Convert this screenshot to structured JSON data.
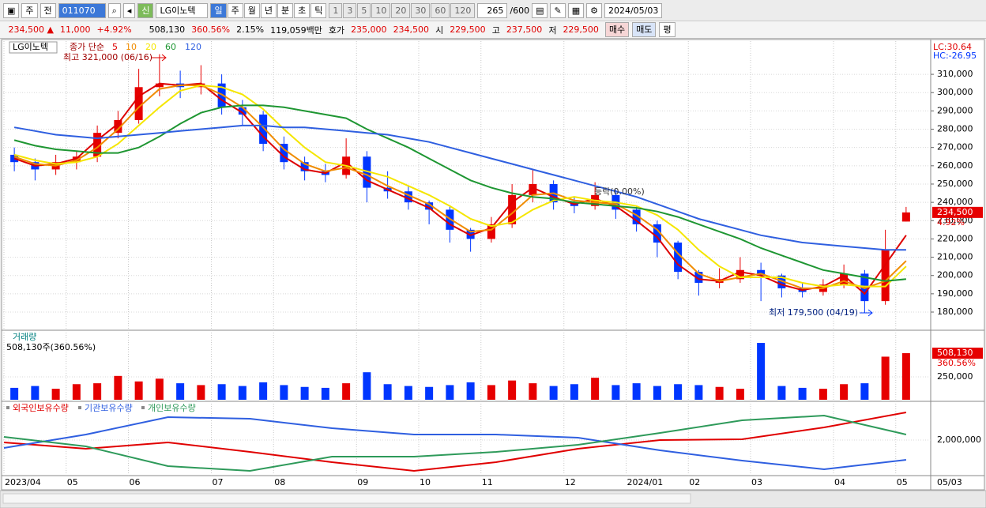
{
  "toolbar": {
    "market": "주",
    "scope": "전",
    "code": "011070",
    "name": "LG이노텍",
    "badge": "신",
    "periods": [
      "일",
      "주",
      "월",
      "년",
      "분",
      "초",
      "틱"
    ],
    "intervals": [
      "1",
      "3",
      "5",
      "10",
      "20",
      "30",
      "60",
      "120"
    ],
    "count": "265",
    "max": "/600",
    "date": "2024/05/03"
  },
  "infobar": {
    "price": "234,500 ▲",
    "change": "11,000",
    "rate": "+4.92%",
    "volume": "508,130",
    "volume_rate": "360.56%",
    "turnover": "2.15%",
    "amount": "119,059백만",
    "ask_label": "호가",
    "ask": "235,000",
    "bid": "234,500",
    "open_label": "시",
    "open": "229,500",
    "high_label": "고",
    "high": "237,500",
    "low_label": "저",
    "low": "229,500",
    "buy": "매수",
    "sell": "매도",
    "avg": "평"
  },
  "chart_data": [
    {
      "type": "candlestick",
      "label": "LG이노텍",
      "legend_title": "종가 단순",
      "up_color": "#e60000",
      "down_color": "#0036ff",
      "categories": [
        "2023/04",
        null,
        null,
        "05",
        null,
        null,
        "06",
        null,
        null,
        null,
        "07",
        null,
        null,
        "08",
        null,
        null,
        null,
        "09",
        null,
        null,
        "10",
        null,
        null,
        "11",
        null,
        null,
        null,
        "12",
        null,
        null,
        "2024/01",
        null,
        null,
        "02",
        null,
        null,
        "03",
        null,
        null,
        null,
        "04",
        null,
        null,
        "05"
      ],
      "ohlc": [
        [
          266000,
          270000,
          257000,
          262000
        ],
        [
          262000,
          264000,
          252000,
          258000
        ],
        [
          258000,
          266000,
          255000,
          262000
        ],
        [
          262000,
          268000,
          258000,
          265000
        ],
        [
          265000,
          282000,
          262000,
          278000
        ],
        [
          278000,
          290000,
          275000,
          285000
        ],
        [
          285000,
          313000,
          283000,
          303000
        ],
        [
          303000,
          321000,
          298000,
          305000
        ],
        [
          305000,
          312000,
          297000,
          303000
        ],
        [
          303000,
          315000,
          299000,
          305000
        ],
        [
          305000,
          310000,
          288000,
          292000
        ],
        [
          292000,
          296000,
          282000,
          288000
        ],
        [
          288000,
          290000,
          268000,
          272000
        ],
        [
          272000,
          276000,
          258000,
          262000
        ],
        [
          262000,
          265000,
          252000,
          257000
        ],
        [
          257000,
          261000,
          251000,
          255000
        ],
        [
          255000,
          275000,
          253000,
          265000
        ],
        [
          265000,
          268000,
          240000,
          248000
        ],
        [
          248000,
          257000,
          242000,
          246000
        ],
        [
          246000,
          249000,
          236000,
          240000
        ],
        [
          240000,
          241000,
          228000,
          236000
        ],
        [
          236000,
          238000,
          218000,
          225000
        ],
        [
          225000,
          226000,
          213000,
          220000
        ],
        [
          220000,
          232000,
          218000,
          228000
        ],
        [
          228000,
          250000,
          226000,
          244000
        ],
        [
          244000,
          258000,
          240000,
          250000
        ],
        [
          250000,
          252000,
          236000,
          240000
        ],
        [
          240000,
          243000,
          234000,
          238000
        ],
        [
          238000,
          251000,
          236000,
          244000
        ],
        [
          244000,
          247000,
          231000,
          236000
        ],
        [
          236000,
          238000,
          224000,
          228000
        ],
        [
          228000,
          230000,
          210000,
          218000
        ],
        [
          218000,
          219000,
          198000,
          202000
        ],
        [
          202000,
          203000,
          189000,
          196000
        ],
        [
          196000,
          204000,
          193000,
          198000
        ],
        [
          198000,
          210000,
          196000,
          203000
        ],
        [
          203000,
          207000,
          186000,
          200000
        ],
        [
          200000,
          201000,
          188000,
          193000
        ],
        [
          193000,
          196000,
          188000,
          191000
        ],
        [
          191000,
          198000,
          189000,
          195000
        ],
        [
          195000,
          206000,
          193000,
          201000
        ],
        [
          201000,
          203000,
          179500,
          186000
        ],
        [
          186000,
          225000,
          184000,
          214000
        ],
        [
          229500,
          237500,
          229500,
          234500
        ]
      ],
      "series": [
        {
          "name": "5",
          "color": "#dd0000",
          "values": [
            264000,
            260000,
            261000,
            264000,
            274000,
            283000,
            298000,
            305000,
            304000,
            305000,
            296000,
            289000,
            276000,
            265000,
            258000,
            256000,
            262000,
            252000,
            247000,
            242000,
            237000,
            228000,
            222000,
            226000,
            240000,
            248000,
            243000,
            239000,
            242000,
            238000,
            230000,
            221000,
            206000,
            198000,
            197000,
            202000,
            200000,
            195000,
            192000,
            194000,
            200000,
            190000,
            206000,
            222000
          ]
        },
        {
          "name": "10",
          "color": "#f08c00",
          "values": [
            265000,
            261000,
            260000,
            263000,
            270000,
            280000,
            292000,
            302000,
            304000,
            304000,
            299000,
            292000,
            281000,
            269000,
            261000,
            257000,
            259000,
            255000,
            249000,
            244000,
            239000,
            231000,
            224000,
            225000,
            234000,
            244000,
            245000,
            241000,
            240000,
            239000,
            233000,
            225000,
            212000,
            201000,
            197000,
            199000,
            201000,
            197000,
            193000,
            193000,
            197000,
            193000,
            197000,
            208000
          ]
        },
        {
          "name": "20",
          "color": "#f5e600",
          "values": [
            266000,
            263000,
            261000,
            262000,
            265000,
            272000,
            282000,
            292000,
            301000,
            304000,
            303000,
            299000,
            291000,
            280000,
            270000,
            262000,
            260000,
            257000,
            254000,
            249000,
            244000,
            238000,
            231000,
            227000,
            229000,
            236000,
            241000,
            243000,
            241000,
            240000,
            238000,
            233000,
            225000,
            214000,
            205000,
            199000,
            199000,
            199000,
            196000,
            194000,
            195000,
            194000,
            194000,
            205000
          ]
        },
        {
          "name": "60",
          "color": "#1e9632",
          "values": [
            274000,
            271000,
            269000,
            268000,
            267000,
            267000,
            270000,
            276000,
            283000,
            289000,
            292000,
            293000,
            293000,
            292000,
            290000,
            288000,
            286000,
            280000,
            275000,
            270000,
            264000,
            258000,
            252000,
            248000,
            245000,
            243000,
            242000,
            240000,
            239000,
            238000,
            237000,
            235000,
            232000,
            228000,
            224000,
            220000,
            215000,
            211000,
            207000,
            203000,
            201000,
            199000,
            197000,
            198000
          ]
        },
        {
          "name": "120",
          "color": "#2f5fe0",
          "values": [
            281000,
            279000,
            277000,
            276000,
            275000,
            276000,
            277000,
            278000,
            279000,
            280000,
            281000,
            282000,
            282000,
            281000,
            281000,
            280000,
            279000,
            278000,
            277000,
            275000,
            273000,
            270000,
            267000,
            264000,
            261000,
            258000,
            255000,
            252000,
            249000,
            246000,
            243000,
            239000,
            235000,
            231000,
            228000,
            225000,
            222000,
            220000,
            218000,
            217000,
            216000,
            215000,
            214000,
            214000
          ]
        }
      ],
      "ylim": [
        170500,
        321700
      ],
      "yticks": [
        {
          "value": 180000,
          "label": "180,000"
        },
        {
          "value": 190000,
          "label": "190,000"
        },
        {
          "value": 200000,
          "label": "200,000"
        },
        {
          "value": 210000,
          "label": "210,000"
        },
        {
          "value": 220000,
          "label": "220,000"
        },
        {
          "value": 230000,
          "label": "230,000"
        },
        {
          "value": 240000,
          "label": "240,000"
        },
        {
          "value": 250000,
          "label": "250,000"
        },
        {
          "value": 260000,
          "label": "260,000"
        },
        {
          "value": 270000,
          "label": "270,000"
        },
        {
          "value": 280000,
          "label": "280,000"
        },
        {
          "value": 290000,
          "label": "290,000"
        },
        {
          "value": 300000,
          "label": "300,000"
        },
        {
          "value": 310000,
          "label": "310,000"
        }
      ],
      "high_note": "최고 321,000 (06/16)",
      "low_note": "최저 179,500 (04/19)",
      "ref_note": "등락(0.00%)",
      "last_label": "234,500",
      "change_label": "4.92%",
      "lc": "LC:30.64",
      "hc": "HC:-26.95",
      "date_label": "05/03"
    },
    {
      "type": "bar",
      "title": "거래량",
      "subtitle": "508,130주(360.56%)",
      "last_label": "508,130",
      "last_rate": "360.56%",
      "values": [
        130000,
        150000,
        120000,
        170000,
        180000,
        260000,
        200000,
        230000,
        180000,
        160000,
        170000,
        150000,
        190000,
        160000,
        140000,
        130000,
        180000,
        300000,
        170000,
        150000,
        140000,
        160000,
        190000,
        160000,
        210000,
        180000,
        150000,
        170000,
        240000,
        160000,
        180000,
        150000,
        170000,
        160000,
        140000,
        120000,
        620000,
        150000,
        130000,
        120000,
        170000,
        180000,
        470000,
        508130
      ],
      "ylim": [
        0,
        741000
      ],
      "yticks": [
        {
          "value": 250000,
          "label": "250,000"
        }
      ]
    },
    {
      "type": "line",
      "series": [
        {
          "name": "외국인보유수량",
          "color": "#e00000",
          "values": [
            1940000,
            1780000,
            1940000,
            1700000,
            1440000,
            1220000,
            1440000,
            1780000,
            2000000,
            2020000,
            2320000,
            2700000
          ]
        },
        {
          "name": "기관보유수량",
          "color": "#2f5fe0",
          "values": [
            1800000,
            2140000,
            2580000,
            2540000,
            2300000,
            2140000,
            2140000,
            2060000,
            1740000,
            1480000,
            1260000,
            1500000
          ]
        },
        {
          "name": "개인보유수량",
          "color": "#2e9a5a",
          "values": [
            2080000,
            1840000,
            1340000,
            1220000,
            1580000,
            1580000,
            1700000,
            1880000,
            2180000,
            2500000,
            2620000,
            2140000
          ]
        }
      ],
      "ylim": [
        1140000,
        2900000
      ],
      "yticks": [
        {
          "value": 2000000,
          "label": "2,000,000"
        }
      ]
    }
  ]
}
